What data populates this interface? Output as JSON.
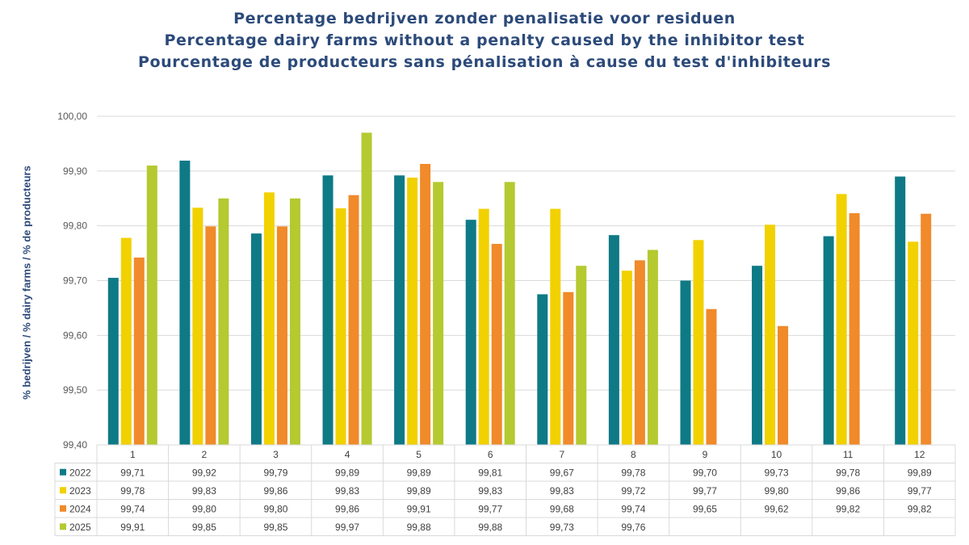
{
  "chart_data": {
    "type": "bar",
    "title": [
      "Percentage bedrijven zonder penalisatie voor residuen",
      "Percentage dairy farms without a penalty caused by the inhibitor test",
      "Pourcentage de producteurs sans pénalisation à cause du test d'inhibiteurs"
    ],
    "ylabel": "% bedrijven / % dairy farms / % de producteurs",
    "xlabel": "",
    "ylim": [
      99.4,
      100.0
    ],
    "yticks": [
      "99,40",
      "99,50",
      "99,60",
      "99,70",
      "99,80",
      "99,90",
      "100,00"
    ],
    "ytick_values": [
      99.4,
      99.5,
      99.6,
      99.7,
      99.8,
      99.9,
      100.0
    ],
    "categories": [
      "1",
      "2",
      "3",
      "4",
      "5",
      "6",
      "7",
      "8",
      "9",
      "10",
      "11",
      "12"
    ],
    "grid": true,
    "data_table": true,
    "series": [
      {
        "name": "2022",
        "color": "#0e7a86",
        "values": [
          99.705,
          99.919,
          99.786,
          99.892,
          99.892,
          99.811,
          99.675,
          99.783,
          99.7,
          99.727,
          99.781,
          99.89
        ],
        "labels": [
          "99,71",
          "99,92",
          "99,79",
          "99,89",
          "99,89",
          "99,81",
          "99,67",
          "99,78",
          "99,70",
          "99,73",
          "99,78",
          "99,89"
        ]
      },
      {
        "name": "2023",
        "color": "#f2d100",
        "values": [
          99.778,
          99.833,
          99.861,
          99.832,
          99.888,
          99.831,
          99.831,
          99.718,
          99.774,
          99.802,
          99.858,
          99.771
        ],
        "labels": [
          "99,78",
          "99,83",
          "99,86",
          "99,83",
          "99,89",
          "99,83",
          "99,83",
          "99,72",
          "99,77",
          "99,80",
          "99,86",
          "99,77"
        ]
      },
      {
        "name": "2024",
        "color": "#f08a2a",
        "values": [
          99.742,
          99.799,
          99.799,
          99.856,
          99.913,
          99.767,
          99.679,
          99.737,
          99.648,
          99.617,
          99.823,
          99.822
        ],
        "labels": [
          "99,74",
          "99,80",
          "99,80",
          "99,86",
          "99,91",
          "99,77",
          "99,68",
          "99,74",
          "99,65",
          "99,62",
          "99,82",
          "99,82"
        ]
      },
      {
        "name": "2025",
        "color": "#b5c930",
        "values": [
          99.91,
          99.85,
          99.85,
          99.97,
          99.88,
          99.88,
          99.727,
          99.756,
          null,
          null,
          null,
          null
        ],
        "labels": [
          "99,91",
          "99,85",
          "99,85",
          "99,97",
          "99,88",
          "99,88",
          "99,73",
          "99,76",
          "",
          "",
          "",
          ""
        ]
      }
    ]
  }
}
